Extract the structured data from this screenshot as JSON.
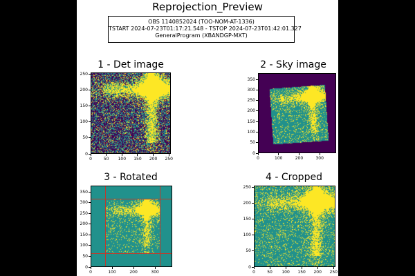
{
  "figure": {
    "title": "Reprojection_Preview",
    "info_lines": [
      "OBS 1140852024 (TOO-NOM-AT-1336)",
      "TSTART 2024-07-23T01:17:21.548 - TSTOP 2024-07-23T01:42:01.327",
      "GeneralProgram (XBANDGP-MXT)"
    ]
  },
  "colors": {
    "viridis_low": "#440154",
    "viridis_mid": "#21918c",
    "viridis_high": "#fde725",
    "crop_lines": "#c0392b"
  },
  "chart_data": [
    {
      "type": "heatmap",
      "title": "1 - Det image",
      "xlim": [
        0,
        256
      ],
      "ylim": [
        0,
        256
      ],
      "xticks": [
        0,
        50,
        100,
        150,
        200,
        250
      ],
      "yticks": [
        0,
        50,
        100,
        150,
        200,
        250
      ],
      "colormap": "viridis",
      "background": "purple-noise",
      "hotspot": {
        "x": 200,
        "y": 215
      }
    },
    {
      "type": "heatmap",
      "title": "2 - Sky image",
      "xlim": [
        0,
        380
      ],
      "ylim": [
        0,
        380
      ],
      "xticks": [
        0,
        100,
        200,
        300
      ],
      "yticks": [
        0,
        50,
        100,
        150,
        200,
        250,
        300,
        350
      ],
      "colormap": "viridis",
      "background": "purple",
      "rotated_square": {
        "x0": 60,
        "x1": 330,
        "y0": 55,
        "y1": 320,
        "angle_deg": 4
      }
    },
    {
      "type": "heatmap",
      "title": "3 - Rotated",
      "xlim": [
        0,
        380
      ],
      "ylim": [
        0,
        380
      ],
      "xticks": [
        0,
        100,
        200,
        300
      ],
      "yticks": [
        0,
        50,
        100,
        150,
        200,
        250,
        300,
        350
      ],
      "colormap": "viridis",
      "background": "teal",
      "crop_lines": {
        "x": [
          65,
          320
        ],
        "y": [
          65,
          320
        ]
      }
    },
    {
      "type": "heatmap",
      "title": "4 - Cropped",
      "xlim": [
        0,
        256
      ],
      "ylim": [
        0,
        256
      ],
      "xticks": [
        0,
        50,
        100,
        150,
        200,
        250
      ],
      "yticks": [
        0,
        50,
        100,
        150,
        200,
        250
      ],
      "colormap": "viridis",
      "background": "teal-noise",
      "hotspot": {
        "x": 200,
        "y": 225
      }
    }
  ]
}
